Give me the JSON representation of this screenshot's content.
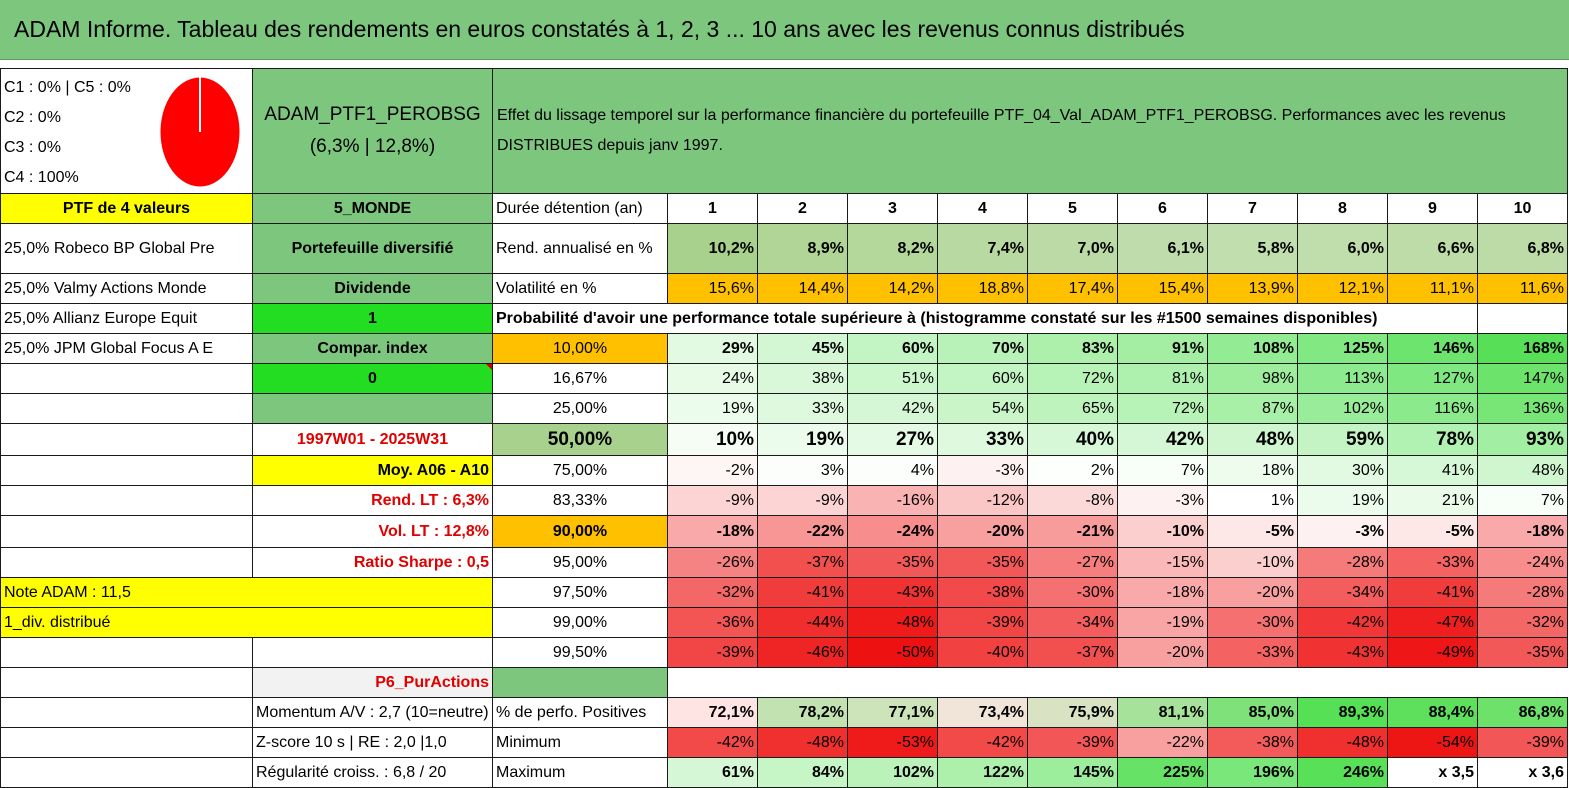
{
  "title": "ADAM Informe. Tableau des rendements en euros constatés à 1, 2, 3 ... 10 ans avec les revenus connus distribués",
  "composition": {
    "lines": [
      "C1 : 0% | C5 : 0%",
      "C2 : 0%",
      "C3 : 0%",
      "C4 : 100%"
    ],
    "pie_color": "#ff0000"
  },
  "fund": {
    "name": "ADAM_PTF1_PEROBSG",
    "stats": "(6,3% | 12,8%)"
  },
  "description": "Effet du lissage temporel sur la performance financière du portefeuille PTF_04_Val_ADAM_PTF1_PEROBSG. Performances avec les revenus DISTRIBUES depuis janv 1997.",
  "left_col": {
    "ptf": "PTF de 4 valeurs",
    "holdings": [
      "25,0% Robeco BP Global Pre",
      "25,0% Valmy Actions Monde",
      "25,0% Allianz Europe Equit",
      "25,0% JPM Global Focus A E"
    ]
  },
  "mid_col": {
    "zone": "5_MONDE",
    "type": "Portefeuille diversifié",
    "dividende": "Dividende",
    "one": "1",
    "compar": "Compar. index",
    "zero": "0",
    "period": "1997W01 - 2025W31",
    "moy": "Moy. A06 - A10",
    "rend_lt": "Rend. LT : 6,3%",
    "vol_lt": "Vol. LT : 12,8%",
    "sharpe": "Ratio Sharpe : 0,5",
    "note": "Note ADAM : 11,5",
    "div": "1_div. distribué",
    "p6": "P6_PurActions",
    "momentum": "Momentum A/V : 2,7 (10=neutre)",
    "zscore": "Z-score 10 s | RE : 2,0 |1,0",
    "regul": "Régularité croiss. : 6,8 / 20"
  },
  "table": {
    "duree_label": "Durée détention (an)",
    "years": [
      "1",
      "2",
      "3",
      "4",
      "5",
      "6",
      "7",
      "8",
      "9",
      "10"
    ],
    "rend_label": "Rend. annualisé en %",
    "rend": [
      "10,2%",
      "8,9%",
      "8,2%",
      "7,4%",
      "7,0%",
      "6,1%",
      "5,8%",
      "6,0%",
      "6,6%",
      "6,8%"
    ],
    "vol_label": "Volatilité en %",
    "vol": [
      "15,6%",
      "14,4%",
      "14,2%",
      "18,8%",
      "17,4%",
      "15,4%",
      "13,9%",
      "12,1%",
      "11,1%",
      "11,6%"
    ],
    "prob_label": "Probabilité d'avoir une performance totale supérieure à (histogramme constaté sur les #1500 semaines disponibles)",
    "prob_rows": [
      {
        "p": "10,00%",
        "v": [
          "29%",
          "45%",
          "60%",
          "70%",
          "83%",
          "91%",
          "108%",
          "125%",
          "146%",
          "168%"
        ]
      },
      {
        "p": "16,67%",
        "v": [
          "24%",
          "38%",
          "51%",
          "60%",
          "72%",
          "81%",
          "98%",
          "113%",
          "127%",
          "147%"
        ]
      },
      {
        "p": "25,00%",
        "v": [
          "19%",
          "33%",
          "42%",
          "54%",
          "65%",
          "72%",
          "87%",
          "102%",
          "116%",
          "136%"
        ]
      },
      {
        "p": "50,00%",
        "v": [
          "10%",
          "19%",
          "27%",
          "33%",
          "40%",
          "42%",
          "48%",
          "59%",
          "78%",
          "93%"
        ]
      },
      {
        "p": "75,00%",
        "v": [
          "-2%",
          "3%",
          "4%",
          "-3%",
          "2%",
          "7%",
          "18%",
          "30%",
          "41%",
          "48%"
        ]
      },
      {
        "p": "83,33%",
        "v": [
          "-9%",
          "-9%",
          "-16%",
          "-12%",
          "-8%",
          "-3%",
          "1%",
          "19%",
          "21%",
          "7%"
        ]
      },
      {
        "p": "90,00%",
        "v": [
          "-18%",
          "-22%",
          "-24%",
          "-20%",
          "-21%",
          "-10%",
          "-5%",
          "-3%",
          "-5%",
          "-18%"
        ]
      },
      {
        "p": "95,00%",
        "v": [
          "-26%",
          "-37%",
          "-35%",
          "-35%",
          "-27%",
          "-15%",
          "-10%",
          "-28%",
          "-33%",
          "-24%"
        ]
      },
      {
        "p": "97,50%",
        "v": [
          "-32%",
          "-41%",
          "-43%",
          "-38%",
          "-30%",
          "-18%",
          "-20%",
          "-34%",
          "-41%",
          "-28%"
        ]
      },
      {
        "p": "99,00%",
        "v": [
          "-36%",
          "-44%",
          "-48%",
          "-39%",
          "-34%",
          "-19%",
          "-30%",
          "-42%",
          "-47%",
          "-32%"
        ]
      },
      {
        "p": "99,50%",
        "v": [
          "-39%",
          "-46%",
          "-50%",
          "-40%",
          "-37%",
          "-20%",
          "-33%",
          "-43%",
          "-49%",
          "-35%"
        ]
      }
    ],
    "pos_label": "% de perfo. Positives",
    "pos": [
      "72,1%",
      "78,2%",
      "77,1%",
      "73,4%",
      "75,9%",
      "81,1%",
      "85,0%",
      "89,3%",
      "88,4%",
      "86,8%"
    ],
    "min_label": "Minimum",
    "min": [
      "-42%",
      "-48%",
      "-53%",
      "-42%",
      "-39%",
      "-22%",
      "-38%",
      "-48%",
      "-54%",
      "-39%"
    ],
    "max_label": "Maximum",
    "max": [
      "61%",
      "84%",
      "102%",
      "122%",
      "145%",
      "225%",
      "196%",
      "246%",
      "x 3,5",
      "x 3,6"
    ]
  }
}
